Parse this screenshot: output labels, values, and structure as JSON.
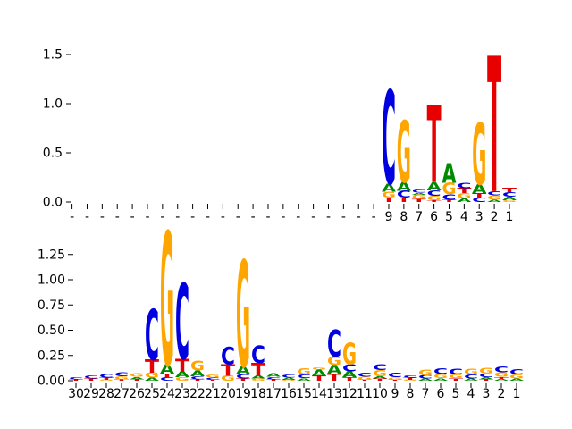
{
  "figure": {
    "background": "#ffffff"
  },
  "colors": {
    "A": "#008A00",
    "C": "#0000E0",
    "G": "#FFA500",
    "T": "#E80000"
  },
  "chart_data": [
    {
      "type": "sequence_logo",
      "name": "top-logo",
      "title": "",
      "ylim": [
        0,
        1.5
      ],
      "grid": false,
      "ytick_labels": [
        "0.0",
        "0.5",
        "1.0",
        "1.5"
      ],
      "xtick_labels": [
        "-",
        "-",
        "-",
        "-",
        "-",
        "-",
        "-",
        "-",
        "-",
        "-",
        "-",
        "-",
        "-",
        "-",
        "-",
        "-",
        "-",
        "-",
        "-",
        "-",
        "-",
        "9",
        "8",
        "7",
        "6",
        "5",
        "4",
        "3",
        "2",
        "1"
      ],
      "stacks": [
        [],
        [],
        [],
        [],
        [],
        [],
        [],
        [],
        [],
        [],
        [],
        [],
        [],
        [],
        [],
        [],
        [],
        [],
        [],
        [],
        [],
        [
          [
            "T",
            0.045
          ],
          [
            "G",
            0.06
          ],
          [
            "A",
            0.085
          ],
          [
            "C",
            0.95
          ]
        ],
        [
          [
            "T",
            0.045
          ],
          [
            "C",
            0.07
          ],
          [
            "A",
            0.09
          ],
          [
            "G",
            0.63
          ]
        ],
        [
          [
            "T",
            0.03
          ],
          [
            "G",
            0.045
          ],
          [
            "A",
            0.02
          ],
          [
            "C",
            0.03
          ]
        ],
        [
          [
            "T",
            0.02
          ],
          [
            "G",
            0.045
          ],
          [
            "C",
            0.055
          ],
          [
            "A",
            0.085
          ],
          [
            "T",
            0.78
          ]
        ],
        [
          [
            "T",
            0.025
          ],
          [
            "C",
            0.055
          ],
          [
            "G",
            0.115
          ],
          [
            "A",
            0.2
          ]
        ],
        [
          [
            "A",
            0.035
          ],
          [
            "G",
            0.055
          ],
          [
            "T",
            0.05
          ],
          [
            "C",
            0.055
          ]
        ],
        [
          [
            "C",
            0.045
          ],
          [
            "T",
            0.045
          ],
          [
            "A",
            0.09
          ],
          [
            "G",
            0.63
          ]
        ],
        [
          [
            "A",
            0.025
          ],
          [
            "G",
            0.045
          ],
          [
            "C",
            0.04
          ],
          [
            "T",
            1.38
          ]
        ],
        [
          [
            "G",
            0.02
          ],
          [
            "A",
            0.035
          ],
          [
            "C",
            0.045
          ],
          [
            "T",
            0.045
          ]
        ]
      ]
    },
    {
      "type": "sequence_logo",
      "name": "bottom-logo",
      "title": "",
      "ylim": [
        0,
        1.25
      ],
      "grid": false,
      "ytick_labels": [
        "0.00",
        "0.25",
        "0.50",
        "0.75",
        "1.00",
        "1.25"
      ],
      "xtick_labels": [
        "30",
        "29",
        "28",
        "27",
        "26",
        "25",
        "24",
        "23",
        "22",
        "21",
        "20",
        "19",
        "18",
        "17",
        "16",
        "15",
        "14",
        "13",
        "12",
        "11",
        "10",
        "9",
        "8",
        "7",
        "6",
        "5",
        "4",
        "3",
        "2",
        "1"
      ],
      "stacks": [
        [
          [
            "T",
            0.015
          ],
          [
            "C",
            0.025
          ]
        ],
        [
          [
            "T",
            0.02
          ],
          [
            "C",
            0.03
          ]
        ],
        [
          [
            "G",
            0.01
          ],
          [
            "T",
            0.02
          ],
          [
            "C",
            0.035
          ]
        ],
        [
          [
            "T",
            0.015
          ],
          [
            "G",
            0.03
          ],
          [
            "C",
            0.04
          ]
        ],
        [
          [
            "T",
            0.015
          ],
          [
            "A",
            0.025
          ],
          [
            "G",
            0.035
          ]
        ],
        [
          [
            "A",
            0.03
          ],
          [
            "G",
            0.05
          ],
          [
            "T",
            0.13
          ],
          [
            "C",
            0.5
          ]
        ],
        [
          [
            "C",
            0.035
          ],
          [
            "T",
            0.035
          ],
          [
            "A",
            0.09
          ],
          [
            "G",
            1.32
          ]
        ],
        [
          [
            "G",
            0.035
          ],
          [
            "A",
            0.055
          ],
          [
            "T",
            0.125
          ],
          [
            "C",
            0.75
          ]
        ],
        [
          [
            "T",
            0.015
          ],
          [
            "C",
            0.03
          ],
          [
            "A",
            0.055
          ],
          [
            "G",
            0.095
          ]
        ],
        [
          [
            "T",
            0.01
          ],
          [
            "C",
            0.02
          ],
          [
            "G",
            0.03
          ]
        ],
        [
          [
            "G",
            0.05
          ],
          [
            "T",
            0.115
          ],
          [
            "C",
            0.175
          ]
        ],
        [
          [
            "T",
            0.02
          ],
          [
            "C",
            0.045
          ],
          [
            "A",
            0.08
          ],
          [
            "G",
            1.05
          ]
        ],
        [
          [
            "G",
            0.02
          ],
          [
            "A",
            0.03
          ],
          [
            "T",
            0.125
          ],
          [
            "C",
            0.175
          ]
        ],
        [
          [
            "T",
            0.015
          ],
          [
            "C",
            0.025
          ],
          [
            "A",
            0.035
          ]
        ],
        [
          [
            "G",
            0.01
          ],
          [
            "A",
            0.02
          ],
          [
            "C",
            0.03
          ]
        ],
        [
          [
            "A",
            0.025
          ],
          [
            "C",
            0.035
          ],
          [
            "G",
            0.06
          ]
        ],
        [
          [
            "T",
            0.05
          ],
          [
            "A",
            0.06
          ],
          [
            "G",
            0.02
          ]
        ],
        [
          [
            "T",
            0.07
          ],
          [
            "A",
            0.085
          ],
          [
            "G",
            0.085
          ],
          [
            "C",
            0.265
          ]
        ],
        [
          [
            "T",
            0.035
          ],
          [
            "A",
            0.06
          ],
          [
            "C",
            0.07
          ],
          [
            "G",
            0.21
          ]
        ],
        [
          [
            "T",
            0.01
          ],
          [
            "G",
            0.03
          ],
          [
            "C",
            0.04
          ]
        ],
        [
          [
            "T",
            0.02
          ],
          [
            "A",
            0.025
          ],
          [
            "G",
            0.06
          ],
          [
            "C",
            0.055
          ]
        ],
        [
          [
            "T",
            0.01
          ],
          [
            "G",
            0.025
          ],
          [
            "C",
            0.045
          ]
        ],
        [
          [
            "G",
            0.01
          ],
          [
            "T",
            0.02
          ],
          [
            "C",
            0.02
          ]
        ],
        [
          [
            "A",
            0.02
          ],
          [
            "C",
            0.035
          ],
          [
            "G",
            0.055
          ]
        ],
        [
          [
            "A",
            0.025
          ],
          [
            "G",
            0.04
          ],
          [
            "C",
            0.055
          ]
        ],
        [
          [
            "T",
            0.025
          ],
          [
            "G",
            0.035
          ],
          [
            "C",
            0.055
          ]
        ],
        [
          [
            "A",
            0.02
          ],
          [
            "C",
            0.04
          ],
          [
            "G",
            0.055
          ]
        ],
        [
          [
            "T",
            0.015
          ],
          [
            "A",
            0.02
          ],
          [
            "C",
            0.035
          ],
          [
            "G",
            0.055
          ]
        ],
        [
          [
            "A",
            0.015
          ],
          [
            "T",
            0.025
          ],
          [
            "G",
            0.045
          ],
          [
            "C",
            0.055
          ]
        ],
        [
          [
            "A",
            0.02
          ],
          [
            "G",
            0.04
          ],
          [
            "C",
            0.05
          ]
        ]
      ]
    }
  ]
}
